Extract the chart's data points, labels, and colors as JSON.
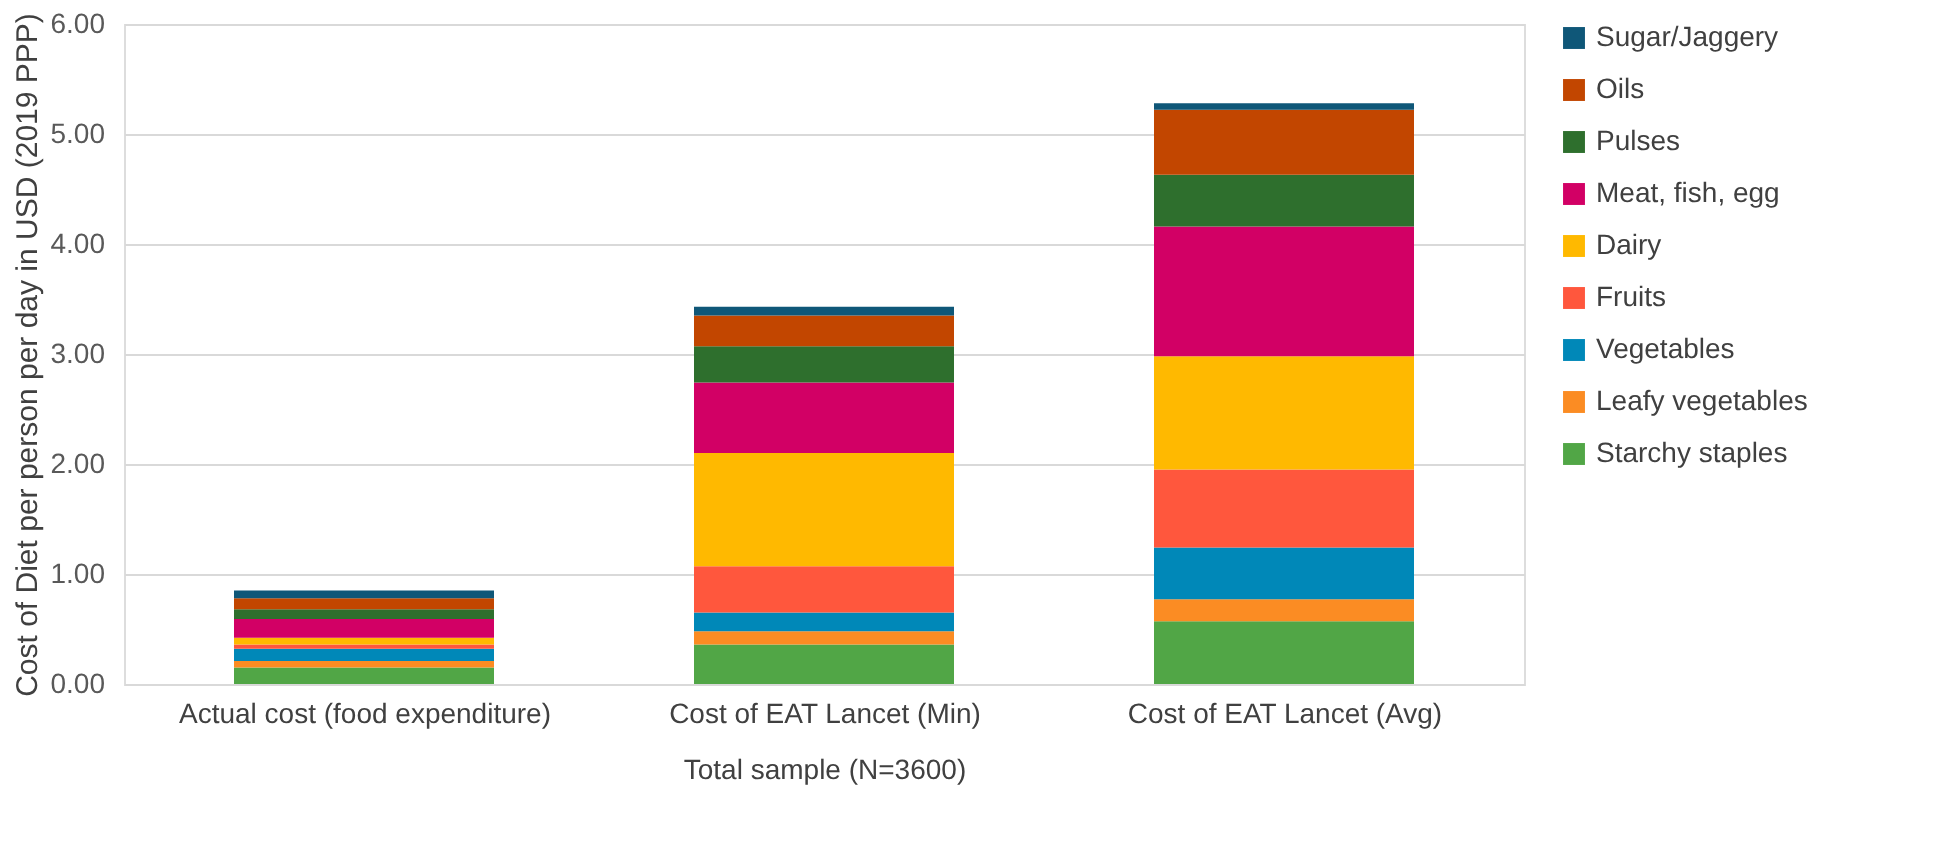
{
  "chart_data": {
    "type": "bar",
    "stacked": true,
    "ylabel": "Cost of Diet per person per day in USD (2019 PPP)",
    "xlabel": "Total sample (N=3600)",
    "categories": [
      "Actual cost (food expenditure)",
      "Cost of EAT Lancet (Min)",
      "Cost of EAT Lancet (Avg)"
    ],
    "ylim": [
      0,
      6
    ],
    "yticks": [
      {
        "value": 0,
        "label": "0.00"
      },
      {
        "value": 1,
        "label": "1.00"
      },
      {
        "value": 2,
        "label": "2.00"
      },
      {
        "value": 3,
        "label": "3.00"
      },
      {
        "value": 4,
        "label": "4.00"
      },
      {
        "value": 5,
        "label": "5.00"
      },
      {
        "value": 6,
        "label": "6.00"
      }
    ],
    "grid": "y",
    "legend": "right",
    "series": [
      {
        "name": "Starchy staples",
        "color": "#51a646",
        "values": [
          0.15,
          0.36,
          0.57
        ]
      },
      {
        "name": "Leafy vegetables",
        "color": "#fb8c23",
        "values": [
          0.06,
          0.12,
          0.2
        ]
      },
      {
        "name": "Vegetables",
        "color": "#0088b8",
        "values": [
          0.11,
          0.17,
          0.47
        ]
      },
      {
        "name": "Fruits",
        "color": "#ff573d",
        "values": [
          0.04,
          0.42,
          0.71
        ]
      },
      {
        "name": "Dairy",
        "color": "#ffb900",
        "values": [
          0.06,
          1.03,
          1.03
        ]
      },
      {
        "name": "Meat, fish, egg",
        "color": "#d20065",
        "values": [
          0.17,
          0.64,
          1.18
        ]
      },
      {
        "name": "Pulses",
        "color": "#2e6f2d",
        "values": [
          0.09,
          0.33,
          0.47
        ]
      },
      {
        "name": "Oils",
        "color": "#c24600",
        "values": [
          0.1,
          0.28,
          0.59
        ]
      },
      {
        "name": "Sugar/Jaggery",
        "color": "#0f5778",
        "values": [
          0.07,
          0.08,
          0.06
        ]
      }
    ]
  }
}
